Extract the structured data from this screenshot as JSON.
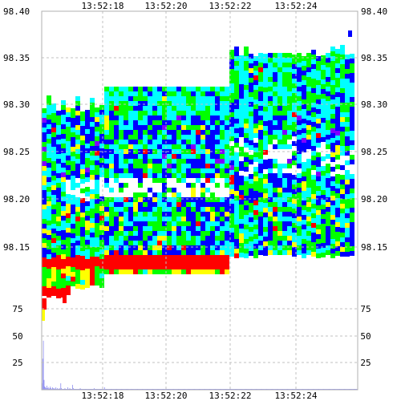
{
  "chart_data": [
    {
      "type": "heatmap",
      "title": "",
      "x_ticks": [
        "13:52:18",
        "13:52:20",
        "13:52:22",
        "13:52:24"
      ],
      "y_ticks": [
        "98.40",
        "98.35",
        "98.30",
        "98.25",
        "98.20",
        "98.15"
      ],
      "ylim": [
        98.115,
        98.4
      ],
      "grid": true,
      "grid_style": "dashed",
      "colormap": [
        "#ff0000",
        "#ffff00",
        "#00ff00",
        "#00ffff",
        "#0000ff",
        "#8000ff"
      ],
      "note_colors": {
        "ask_side_intense": "#ff0000",
        "white_gap": "#ffffff"
      }
    },
    {
      "type": "bar",
      "title": "",
      "x_ticks": [
        "13:52:18",
        "13:52:20",
        "13:52:22",
        "13:52:24"
      ],
      "y_ticks": [
        "75",
        "50",
        "25"
      ],
      "ylim": [
        0,
        100
      ],
      "grid": true,
      "bar_color": "#8a8af0",
      "values": [
        8,
        38,
        60,
        12,
        4,
        3,
        2,
        5,
        2,
        3,
        1,
        2,
        4,
        2,
        1,
        3,
        2,
        1,
        2,
        1,
        3,
        1,
        2,
        1,
        1,
        2,
        1,
        8,
        2,
        1,
        1,
        1,
        1,
        2,
        1,
        1,
        1,
        3,
        1,
        1,
        2,
        1,
        1,
        1,
        6,
        2,
        1,
        1,
        1,
        1,
        1,
        1,
        1,
        1,
        1,
        2,
        1,
        1,
        1,
        1,
        1,
        1,
        1,
        1,
        1,
        1,
        1,
        1,
        1,
        1,
        1,
        1,
        1,
        1,
        1,
        2,
        1,
        1,
        1,
        1,
        1,
        1,
        1,
        1,
        1,
        1,
        1,
        1,
        1,
        1,
        3,
        1,
        1,
        1,
        1,
        1,
        1,
        1,
        1,
        1,
        1,
        1,
        1,
        1,
        1,
        1,
        1,
        1,
        1,
        1,
        1,
        1,
        1,
        1,
        1,
        1,
        1,
        1,
        1,
        1,
        1,
        1,
        1,
        1,
        1,
        1,
        1,
        1,
        1,
        1,
        1,
        1,
        1,
        1,
        1,
        1,
        1,
        1,
        1,
        1,
        1,
        1,
        1,
        1,
        1,
        1,
        1,
        1,
        1,
        1,
        1,
        1,
        1,
        1,
        1,
        1,
        1,
        1,
        1,
        1,
        1,
        1,
        1,
        1,
        1,
        1,
        1,
        1,
        1,
        1,
        1,
        1,
        1,
        1,
        1,
        1,
        1,
        1,
        1,
        1,
        1,
        1,
        1,
        1,
        1,
        1,
        1,
        1,
        1,
        1,
        1,
        1,
        1,
        1,
        1,
        1,
        1,
        1,
        1,
        1,
        1,
        1,
        1,
        1,
        1,
        1,
        1,
        1,
        1,
        1,
        1,
        1,
        1,
        1,
        1,
        1,
        1,
        1,
        1,
        1,
        1,
        1,
        1,
        1,
        1,
        1,
        1,
        1,
        1,
        1,
        1,
        1,
        1,
        1,
        1,
        1,
        1,
        1,
        1,
        1,
        1,
        1,
        1,
        1,
        1,
        1,
        1,
        1,
        1,
        1,
        1,
        1,
        1,
        1,
        1,
        1,
        1,
        1,
        1,
        1,
        1,
        1,
        1,
        1,
        1,
        1,
        1,
        1,
        1,
        1,
        1,
        1,
        1,
        1,
        1,
        1,
        1,
        1,
        1,
        1,
        1,
        1,
        1,
        1,
        1,
        1,
        1,
        1,
        1,
        1,
        1,
        1,
        1,
        1,
        1,
        1,
        1,
        1,
        1,
        1,
        1,
        1,
        1,
        1,
        1,
        1,
        1,
        1,
        1,
        1,
        1,
        1,
        1,
        1,
        1,
        1,
        1,
        1,
        1,
        1,
        1,
        1,
        1,
        1,
        1,
        1,
        1,
        1,
        1,
        1,
        1,
        1,
        1,
        1,
        1,
        1,
        1,
        1,
        1,
        1,
        1,
        1,
        1,
        1,
        1,
        1,
        1,
        1,
        1,
        1,
        1,
        1,
        1,
        1,
        1,
        1,
        1,
        1,
        1,
        1,
        1,
        1,
        1,
        1,
        1,
        1,
        1,
        1,
        1,
        1,
        1,
        1,
        1,
        1,
        1,
        1,
        1,
        1,
        1,
        1,
        1,
        1,
        1,
        1,
        1,
        1,
        1,
        1,
        1,
        1,
        1,
        1,
        1,
        1,
        1,
        1,
        1,
        1,
        1,
        1,
        1,
        1,
        1,
        1,
        1,
        1,
        1,
        1,
        1,
        1,
        1,
        1,
        1,
        1,
        1,
        1,
        1,
        1,
        1,
        1,
        1,
        1,
        1,
        1,
        1,
        1,
        1,
        1,
        1,
        1,
        1,
        1,
        1,
        1,
        1,
        1,
        1,
        1,
        1,
        1,
        1,
        1,
        1,
        1,
        1,
        1,
        1,
        1,
        1,
        1,
        1,
        1,
        1,
        1,
        1
      ]
    }
  ]
}
